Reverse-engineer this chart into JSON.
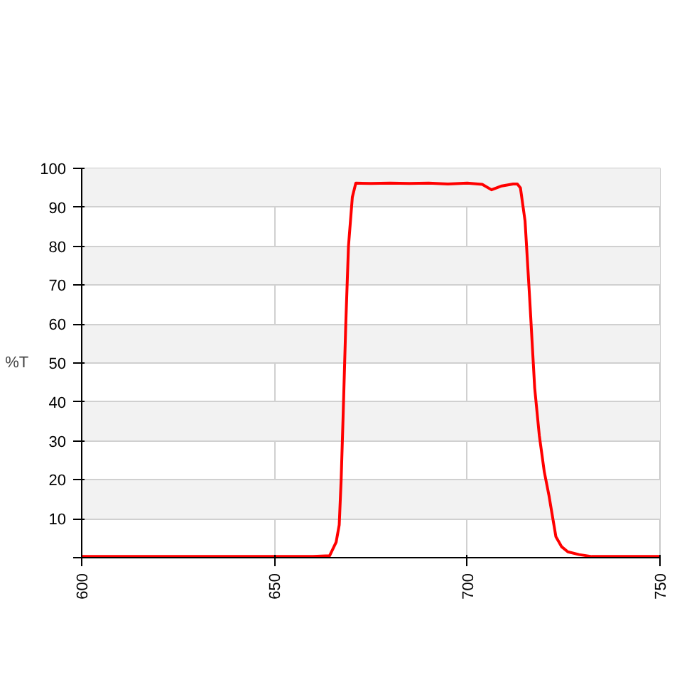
{
  "chart_data": {
    "type": "line",
    "ylabel": "%T",
    "x": [
      600,
      640,
      660,
      664.3,
      666,
      666.8,
      667.3,
      667.8,
      668.5,
      669.2,
      670.2,
      671.1,
      675,
      680,
      685,
      690,
      695,
      700,
      703.9,
      706.3,
      709,
      711.9,
      713,
      713.8,
      715,
      716.2,
      717.5,
      718.7,
      720,
      721.2,
      723,
      724.5,
      726.1,
      729,
      732.3,
      740,
      750
    ],
    "series": [
      {
        "color": "#ff0000",
        "values": [
          0.3,
          0.3,
          0.3,
          0.5,
          4,
          8.4,
          20,
          36,
          60,
          80,
          92.6,
          96.2,
          96.1,
          96.2,
          96.1,
          96.2,
          96,
          96.2,
          95.9,
          94.5,
          95.5,
          96,
          96,
          95,
          86.5,
          66.6,
          43.6,
          31.4,
          22,
          16,
          5.4,
          2.8,
          1.5,
          0.8,
          0.3,
          0.3,
          0.3
        ]
      }
    ],
    "xlim": [
      600,
      750
    ],
    "ylim": [
      0,
      100
    ],
    "xticks": [
      600,
      650,
      700,
      750
    ],
    "yticks": [
      {
        "value": 0,
        "label": null
      },
      10,
      20,
      30,
      40,
      50,
      60,
      70,
      80,
      90,
      100
    ],
    "grid": true,
    "marker": "none",
    "line_style": "solid"
  }
}
